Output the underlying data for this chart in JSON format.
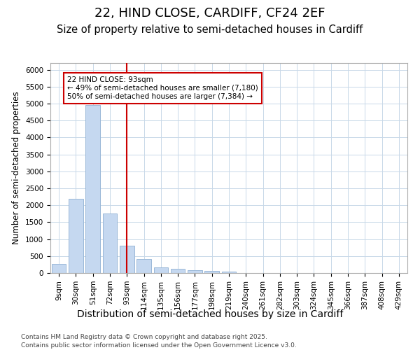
{
  "title1": "22, HIND CLOSE, CARDIFF, CF24 2EF",
  "title2": "Size of property relative to semi-detached houses in Cardiff",
  "xlabel": "Distribution of semi-detached houses by size in Cardiff",
  "ylabel": "Number of semi-detached properties",
  "categories": [
    "9sqm",
    "30sqm",
    "51sqm",
    "72sqm",
    "93sqm",
    "114sqm",
    "135sqm",
    "156sqm",
    "177sqm",
    "198sqm",
    "219sqm",
    "240sqm",
    "261sqm",
    "282sqm",
    "303sqm",
    "324sqm",
    "345sqm",
    "366sqm",
    "387sqm",
    "408sqm",
    "429sqm"
  ],
  "values": [
    270,
    2200,
    4950,
    1750,
    800,
    420,
    170,
    120,
    90,
    60,
    50,
    0,
    0,
    0,
    0,
    0,
    0,
    0,
    0,
    0,
    0
  ],
  "bar_color": "#c5d8f0",
  "bar_edgecolor": "#9ab8d8",
  "vline_bin": 4,
  "vline_color": "#cc0000",
  "annotation_text": "22 HIND CLOSE: 93sqm\n← 49% of semi-detached houses are smaller (7,180)\n50% of semi-detached houses are larger (7,384) →",
  "annotation_box_edgecolor": "#cc0000",
  "ylim": [
    0,
    6200
  ],
  "yticks": [
    0,
    500,
    1000,
    1500,
    2000,
    2500,
    3000,
    3500,
    4000,
    4500,
    5000,
    5500,
    6000
  ],
  "background_color": "#ffffff",
  "grid_color": "#c8d8e8",
  "footer_line1": "Contains HM Land Registry data © Crown copyright and database right 2025.",
  "footer_line2": "Contains public sector information licensed under the Open Government Licence v3.0.",
  "title1_fontsize": 13,
  "title2_fontsize": 10.5,
  "xlabel_fontsize": 10,
  "ylabel_fontsize": 8.5,
  "tick_fontsize": 7.5,
  "annot_fontsize": 7.5,
  "footer_fontsize": 6.5
}
